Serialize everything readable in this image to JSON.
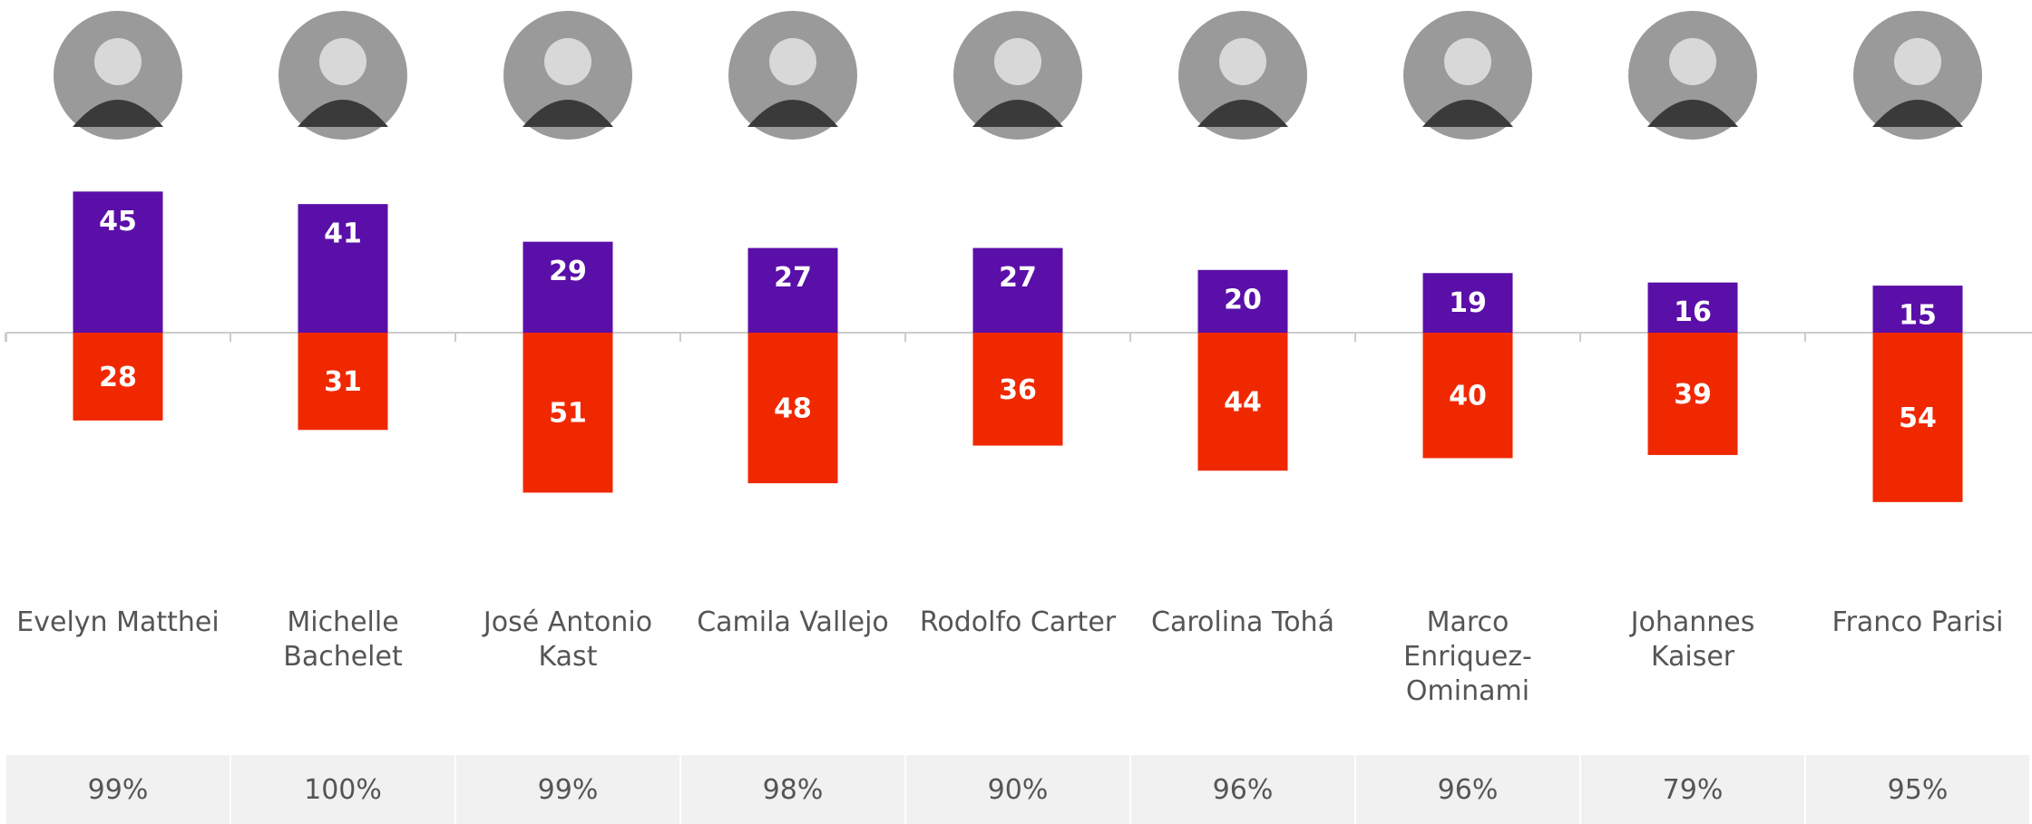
{
  "chart_data": {
    "type": "diverging-bar",
    "categories": [
      "Evelyn Matthei",
      "Michelle Bachelet",
      "José Antonio Kast",
      "Camila Vallejo",
      "Rodolfo Carter",
      "Carolina Tohá",
      "Marco Enriquez-Ominami",
      "Johannes Kaiser",
      "Franco Parisi"
    ],
    "series": [
      {
        "color": "#5a0fa8",
        "values": [
          45,
          41,
          29,
          27,
          27,
          20,
          19,
          16,
          15
        ]
      },
      {
        "color": "#f02800",
        "values": [
          28,
          31,
          51,
          48,
          36,
          44,
          40,
          39,
          54
        ]
      }
    ]
  },
  "footer": [
    "99%",
    "100%",
    "99%",
    "98%",
    "90%",
    "96%",
    "96%",
    "79%",
    "95%"
  ]
}
